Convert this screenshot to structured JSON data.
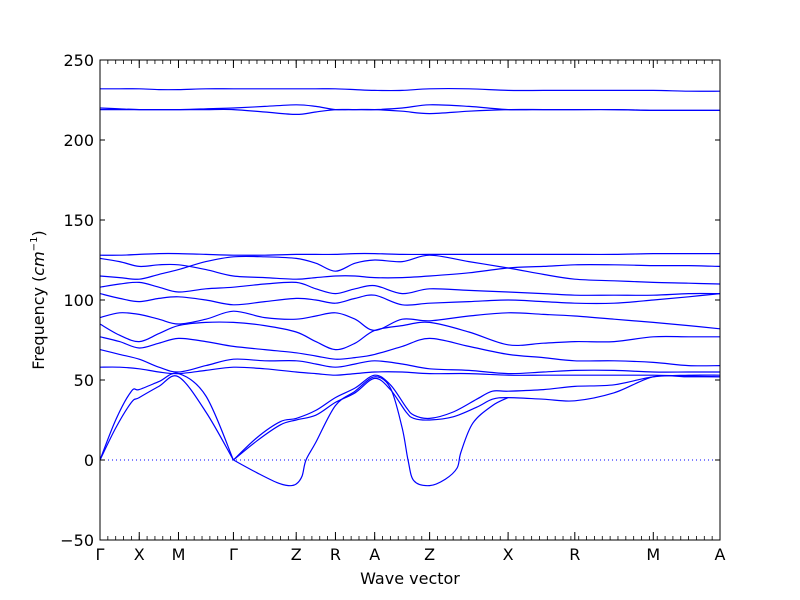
{
  "chart_data": {
    "type": "line",
    "xlabel": "Wave vector",
    "ylabel_text": "Frequency (",
    "ylabel_unit": "cm",
    "ylabel_exp": "−1",
    "ylabel_close": ")",
    "ylim": [
      -50,
      250
    ],
    "y_ticks": [
      -50,
      0,
      50,
      100,
      150,
      200,
      250
    ],
    "y_tick_labels": [
      "−50",
      "0",
      "50",
      "100",
      "150",
      "200",
      "250"
    ],
    "x_ticks": [
      0,
      1,
      2,
      3.4,
      5,
      6,
      7,
      8.4,
      10.4,
      12.1,
      14.1,
      15.8
    ],
    "x_tick_labels": [
      "Γ",
      "X",
      "M",
      "Γ",
      "Z",
      "R",
      "A",
      "Z",
      "X",
      "R",
      "M",
      "A"
    ],
    "zero_line": 0,
    "line_color": "#0000ff",
    "zero_line_color": "#0000ff",
    "series": [
      {
        "x": [
          0,
          0.5,
          1,
          1.5,
          2,
          2.7,
          3.4,
          4.2,
          5,
          5.5,
          6,
          6.5,
          7,
          7.7,
          8.4,
          9.4,
          10.4,
          11.3,
          12.1,
          13.1,
          14.1,
          15,
          15.8
        ],
        "y": [
          232,
          232,
          232,
          231.5,
          231.5,
          232,
          232,
          232,
          232,
          232,
          232,
          231.5,
          231,
          231,
          232,
          232,
          231,
          231,
          231,
          231,
          231,
          230.5,
          230.5
        ]
      },
      {
        "x": [
          0,
          0.5,
          1,
          1.5,
          2,
          2.7,
          3.4,
          4.2,
          5,
          5.5,
          6,
          6.5,
          7,
          7.7,
          8.4,
          9.4,
          10.4,
          11.3,
          12.1,
          13.1,
          14.1,
          15,
          15.8
        ],
        "y": [
          220,
          219.5,
          219,
          219,
          219,
          219.5,
          220,
          221,
          222,
          221,
          219,
          219,
          219,
          220,
          222,
          221,
          219,
          219,
          219,
          219,
          218.5,
          218.5,
          218.5
        ]
      },
      {
        "x": [
          0,
          0.5,
          1,
          1.5,
          2,
          2.7,
          3.4,
          4.2,
          5,
          5.5,
          6,
          6.5,
          7,
          7.7,
          8.4,
          9.4,
          10.4,
          11.3,
          12.1,
          13.1,
          14.1,
          15,
          15.8
        ],
        "y": [
          219,
          219,
          219,
          219,
          219,
          219,
          219,
          217.5,
          216,
          217.5,
          219,
          219,
          219,
          218,
          216.5,
          218,
          219,
          219,
          219,
          219,
          218.5,
          218.5,
          218.5
        ]
      },
      {
        "x": [
          0,
          0.5,
          1,
          1.5,
          2,
          2.7,
          3.4,
          4.2,
          5,
          5.5,
          6,
          6.5,
          7,
          7.7,
          8.4,
          9.4,
          10.4,
          11.3,
          12.1,
          13.1,
          14.1,
          15,
          15.8
        ],
        "y": [
          128,
          128,
          128.5,
          129,
          129,
          128.5,
          128,
          128,
          128.5,
          128.5,
          128.5,
          129,
          129,
          128.5,
          128.5,
          128.5,
          128.5,
          128.5,
          128.5,
          128.5,
          129,
          129,
          129
        ]
      },
      {
        "x": [
          0,
          0.5,
          1,
          1.5,
          2,
          2.7,
          3.4,
          4.2,
          5,
          5.5,
          6,
          6.5,
          7,
          7.7,
          8.4,
          9.4,
          10.4,
          11.3,
          12.1,
          13.1,
          14.1,
          15,
          15.8
        ],
        "y": [
          126,
          124,
          121,
          122,
          122,
          119,
          115,
          114,
          113,
          114,
          115,
          115,
          114,
          114,
          115,
          117,
          120,
          121,
          122,
          122,
          121.5,
          121.5,
          121
        ]
      },
      {
        "x": [
          0,
          0.5,
          1,
          1.5,
          2,
          2.7,
          3.4,
          4.2,
          5,
          5.5,
          6,
          6.5,
          7,
          7.7,
          8.4,
          9.4,
          10.4,
          11.3,
          12.1,
          13.1,
          14.1,
          15,
          15.8
        ],
        "y": [
          115,
          114,
          113,
          116,
          119,
          124,
          127,
          127,
          126,
          123,
          118,
          123,
          125,
          124,
          128,
          124,
          120,
          116,
          113,
          112,
          111,
          110.5,
          110
        ]
      },
      {
        "x": [
          0,
          0.5,
          1,
          1.5,
          2,
          2.7,
          3.4,
          4.2,
          5,
          5.5,
          6,
          6.5,
          7,
          7.7,
          8.4,
          9.4,
          10.4,
          11.3,
          12.1,
          13.1,
          14.1,
          15,
          15.8
        ],
        "y": [
          108,
          110,
          111,
          108,
          105,
          107,
          108,
          110,
          111,
          107,
          104,
          107,
          109,
          104,
          107,
          106,
          105,
          104,
          103,
          103,
          103,
          104,
          104
        ]
      },
      {
        "x": [
          0,
          0.5,
          1,
          1.5,
          2,
          2.7,
          3.4,
          4.2,
          5,
          5.5,
          6,
          6.5,
          7,
          7.7,
          8.4,
          9.4,
          10.4,
          11.3,
          12.1,
          13.1,
          14.1,
          15,
          15.8
        ],
        "y": [
          104,
          101,
          99,
          101,
          102,
          100,
          97,
          99,
          101,
          100,
          98,
          101,
          103,
          97,
          98,
          99,
          100,
          99,
          98,
          98,
          100,
          102,
          104
        ]
      },
      {
        "x": [
          0,
          0.5,
          1,
          1.5,
          2,
          2.7,
          3.4,
          4.2,
          5,
          5.5,
          6,
          6.5,
          7,
          7.7,
          8.4,
          9.4,
          10.4,
          11.3,
          12.1,
          13.1,
          14.1,
          15,
          15.8
        ],
        "y": [
          89,
          92,
          91,
          88,
          85,
          88,
          93,
          89,
          88,
          90,
          92,
          88,
          81,
          88,
          87,
          90,
          92,
          91,
          90,
          88,
          86,
          84,
          82
        ]
      },
      {
        "x": [
          0,
          0.5,
          1,
          1.5,
          2,
          2.7,
          3.4,
          4.2,
          5,
          5.5,
          6,
          6.5,
          7,
          7.7,
          8.4,
          9.4,
          10.4,
          11.3,
          12.1,
          13.1,
          14.1,
          15,
          15.8
        ],
        "y": [
          85,
          78,
          74,
          79,
          84,
          86,
          86,
          84,
          80,
          74,
          69,
          73,
          81,
          84,
          86,
          80,
          72,
          73,
          74,
          74,
          77,
          77,
          77
        ]
      },
      {
        "x": [
          0,
          0.5,
          1,
          1.5,
          2,
          2.7,
          3.4,
          4.2,
          5,
          5.5,
          6,
          6.5,
          7,
          7.7,
          8.4,
          9.4,
          10.4,
          11.3,
          12.1,
          13.1,
          14.1,
          15,
          15.8
        ],
        "y": [
          77,
          74,
          70,
          73,
          76,
          74,
          71,
          69,
          67,
          65,
          63,
          64,
          66,
          71,
          76,
          71,
          66,
          64,
          62,
          62,
          61,
          59,
          59
        ]
      },
      {
        "x": [
          0,
          0.5,
          1,
          1.5,
          2,
          2.7,
          3.4,
          4.2,
          5,
          5.5,
          6,
          6.5,
          7,
          7.7,
          8.4,
          9.4,
          10.4,
          11.3,
          12.1,
          13.1,
          14.1,
          15,
          15.8
        ],
        "y": [
          69,
          66,
          63,
          58,
          55,
          59,
          63,
          62,
          62,
          60,
          58,
          60,
          62,
          60,
          57,
          56,
          54,
          55,
          56,
          56,
          55,
          55,
          55
        ]
      },
      {
        "x": [
          0,
          0.5,
          1,
          1.5,
          2,
          2.7,
          3.4,
          4.2,
          5,
          5.5,
          6,
          6.5,
          7,
          7.7,
          8.4,
          9.4,
          10.4,
          11.3,
          12.1,
          13.1,
          14.1,
          15,
          15.8
        ],
        "y": [
          58,
          58,
          57,
          55,
          54,
          56,
          58,
          57,
          55,
          54,
          53,
          54,
          55,
          55,
          54,
          54,
          53,
          53,
          53,
          53,
          53,
          52.5,
          52
        ]
      },
      {
        "x": [
          0,
          0.4,
          0.8,
          1,
          1.5,
          2,
          2.7,
          3.4
        ],
        "y": [
          0,
          25,
          43,
          44,
          49,
          54,
          40,
          0
        ]
      },
      {
        "x": [
          0,
          0.4,
          0.8,
          1,
          1.5,
          2,
          2.7,
          3.4
        ],
        "y": [
          0,
          20,
          36,
          39,
          46,
          52,
          30,
          0
        ]
      },
      {
        "x": [
          3.4,
          4,
          4.6,
          5,
          5.5,
          6,
          6.5,
          7,
          7.4,
          7.8,
          8,
          8.4,
          9,
          9.6,
          10,
          10.4,
          11.3,
          12.1,
          13.1,
          14.1,
          15,
          15.8
        ],
        "y": [
          0,
          14,
          24,
          26,
          31,
          39,
          45,
          53,
          47,
          33,
          28,
          26,
          30,
          38,
          43,
          43,
          44,
          46,
          47,
          52,
          53,
          53
        ]
      },
      {
        "x": [
          3.4,
          4,
          4.6,
          5,
          5.5,
          6,
          6.5,
          7,
          7.4,
          7.8,
          8,
          8.4,
          9,
          9.6,
          10,
          10.4,
          11.3,
          12.1,
          13.1,
          14.1,
          15,
          15.8
        ],
        "y": [
          0,
          12,
          22,
          25,
          28,
          36,
          42,
          51,
          44,
          30,
          26,
          25,
          27,
          33,
          38,
          39,
          38,
          37,
          42,
          52,
          52,
          52
        ]
      },
      {
        "x": [
          3.4,
          4,
          4.5,
          4.8,
          5,
          5.15,
          5.25,
          5.5,
          6,
          6.5,
          7,
          7.4,
          7.7,
          7.85,
          8,
          8.4,
          8.8,
          9.1,
          9.2,
          9.5,
          10,
          10.4
        ],
        "y": [
          0,
          -8,
          -14,
          -16,
          -15,
          -10,
          0,
          11,
          34,
          43,
          52,
          45,
          20,
          0,
          -13,
          -16,
          -12,
          -5,
          5,
          23,
          34,
          39
        ]
      }
    ]
  }
}
